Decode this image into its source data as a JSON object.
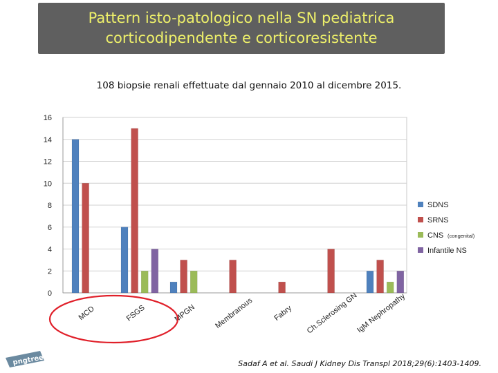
{
  "header": {
    "title_line1": "Pattern isto-patologico nella SN pediatrica",
    "title_line2": "corticodipendente e corticoresistente"
  },
  "subtitle": "108 biopsie renali effettuate dal gennaio 2010 al dicembre 2015.",
  "citation": "Sadaf A et al. Saudi J Kidney Dis Transpl 2018;29(6):1403-1409.",
  "logo_text": "pngtree",
  "highlight_color": "#e0202a",
  "chart_data": {
    "type": "bar",
    "title": "",
    "xlabel": "",
    "ylabel": "",
    "ylim": [
      0,
      16
    ],
    "yticks": [
      0,
      2,
      4,
      6,
      8,
      10,
      12,
      14,
      16
    ],
    "grid": true,
    "legend_position": "right",
    "categories": [
      "MCD",
      "FSGS",
      "MPGN",
      "Membranous",
      "Fabry",
      "Ch.Sclerosing GN",
      "IgM Nephropathy"
    ],
    "highlighted_categories": [
      "MCD",
      "FSGS"
    ],
    "series": [
      {
        "name": "SDNS",
        "color": "#4f81bd",
        "values": [
          14,
          6,
          1,
          0,
          0,
          0,
          2
        ]
      },
      {
        "name": "SRNS",
        "color": "#c0504d",
        "values": [
          10,
          15,
          3,
          3,
          1,
          4,
          3
        ]
      },
      {
        "name": "CNS",
        "note": "(congenital)",
        "color": "#9bbb59",
        "values": [
          0,
          2,
          2,
          0,
          0,
          0,
          1
        ]
      },
      {
        "name": "Infantile NS",
        "color": "#8064a2",
        "values": [
          0,
          4,
          0,
          0,
          0,
          0,
          2
        ]
      }
    ]
  }
}
